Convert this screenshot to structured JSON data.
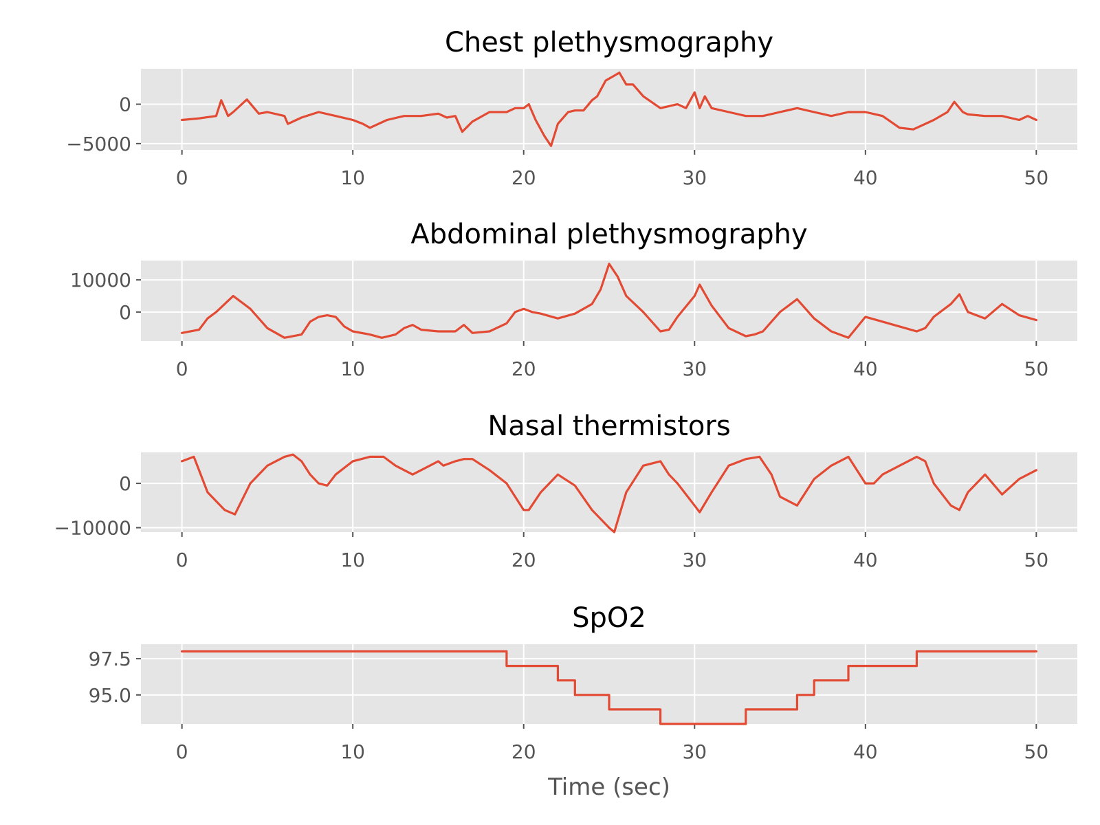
{
  "figure": {
    "xlabel": "Time (sec)"
  },
  "chart_data": [
    {
      "type": "line",
      "title": "Chest plethysmography",
      "xlim": [
        -2.4,
        52.4
      ],
      "ylim": [
        -5800,
        4500
      ],
      "xticks": [
        0,
        10,
        20,
        30,
        40,
        50
      ],
      "xtick_labels": [
        "0",
        "10",
        "20",
        "30",
        "40",
        "50"
      ],
      "yticks": [
        0,
        -5000
      ],
      "ytick_labels": [
        "0",
        "−5000"
      ],
      "grid": true,
      "color": "#e24a33",
      "series": [
        {
          "x": [
            0,
            1,
            2,
            2.3,
            2.7,
            3,
            3.8,
            4.5,
            5,
            6,
            6.2,
            7,
            8,
            9,
            10,
            10.6,
            11,
            12,
            13,
            14,
            15,
            15.5,
            16,
            16.4,
            17,
            18,
            19,
            19.5,
            20,
            20.3,
            20.7,
            21.2,
            21.6,
            22,
            22.6,
            23,
            23.5,
            24,
            24.3,
            24.8,
            25.2,
            25.6,
            26,
            26.4,
            27,
            28,
            29,
            29.5,
            30,
            30.3,
            30.6,
            31,
            32,
            33,
            34,
            35,
            36,
            37,
            38,
            39,
            40,
            41,
            42,
            42.8,
            43,
            44,
            44.8,
            45.2,
            45.7,
            46,
            47,
            48,
            49,
            49.5,
            50
          ],
          "y": [
            -2000,
            -1800,
            -1500,
            500,
            -1500,
            -1000,
            600,
            -1200,
            -1000,
            -1500,
            -2500,
            -1700,
            -1000,
            -1500,
            -2000,
            -2500,
            -3000,
            -2000,
            -1500,
            -1500,
            -1200,
            -1700,
            -1500,
            -3500,
            -2200,
            -1000,
            -1000,
            -500,
            -500,
            0,
            -2000,
            -4000,
            -5300,
            -2500,
            -1000,
            -800,
            -800,
            500,
            1000,
            3000,
            3500,
            4000,
            2500,
            2500,
            1000,
            -500,
            0,
            -500,
            1500,
            -500,
            1000,
            -500,
            -1000,
            -1500,
            -1500,
            -1000,
            -500,
            -1000,
            -1500,
            -1000,
            -1000,
            -1500,
            -3000,
            -3200,
            -3000,
            -2000,
            -1000,
            300,
            -1000,
            -1300,
            -1500,
            -1500,
            -2000,
            -1500,
            -2000
          ]
        }
      ]
    },
    {
      "type": "line",
      "title": "Abdominal plethysmography",
      "xlim": [
        -2.4,
        52.4
      ],
      "ylim": [
        -9000,
        16000
      ],
      "xticks": [
        0,
        10,
        20,
        30,
        40,
        50
      ],
      "xtick_labels": [
        "0",
        "10",
        "20",
        "30",
        "40",
        "50"
      ],
      "yticks": [
        10000,
        0
      ],
      "ytick_labels": [
        "10000",
        "0"
      ],
      "grid": true,
      "color": "#e24a33",
      "series": [
        {
          "x": [
            0,
            1,
            1.5,
            2,
            3,
            4,
            5,
            6,
            7,
            7.5,
            8,
            8.5,
            9,
            9.5,
            10,
            11,
            11.7,
            12.5,
            13,
            13.5,
            14,
            15,
            16,
            16.5,
            17,
            18,
            19,
            19.5,
            20,
            20.5,
            21,
            22,
            23,
            24,
            24.5,
            25,
            25.5,
            26,
            27,
            28,
            28.5,
            29,
            30,
            30.3,
            31,
            32,
            33,
            33.5,
            34,
            35,
            36,
            37,
            38,
            39,
            40,
            41,
            42,
            43,
            43.5,
            44,
            45,
            45.5,
            46,
            47,
            48,
            49,
            50
          ],
          "y": [
            -6500,
            -5500,
            -2000,
            0,
            5000,
            1000,
            -5000,
            -8000,
            -7000,
            -3000,
            -1500,
            -1000,
            -1500,
            -4500,
            -6000,
            -7000,
            -8000,
            -7000,
            -5000,
            -4000,
            -5500,
            -6000,
            -6000,
            -4000,
            -6500,
            -6000,
            -3500,
            0,
            1000,
            0,
            -500,
            -2000,
            -500,
            2500,
            7000,
            15000,
            11000,
            5000,
            0,
            -6000,
            -5500,
            -1500,
            5000,
            8500,
            2000,
            -5000,
            -7500,
            -7000,
            -6000,
            0,
            4000,
            -2000,
            -6000,
            -8000,
            -1500,
            -3000,
            -4500,
            -6000,
            -5000,
            -1500,
            2500,
            5500,
            0,
            -2000,
            2500,
            -1000,
            -2500
          ]
        }
      ]
    },
    {
      "type": "line",
      "title": "Nasal thermistors",
      "xlim": [
        -2.4,
        52.4
      ],
      "ylim": [
        -11000,
        7000
      ],
      "xticks": [
        0,
        10,
        20,
        30,
        40,
        50
      ],
      "xtick_labels": [
        "0",
        "10",
        "20",
        "30",
        "40",
        "50"
      ],
      "yticks": [
        0,
        -10000
      ],
      "ytick_labels": [
        "0",
        "−10000"
      ],
      "grid": true,
      "color": "#e24a33",
      "series": [
        {
          "x": [
            0,
            0.7,
            1.5,
            2.5,
            3.1,
            4,
            5,
            6,
            6.5,
            7,
            7.5,
            8,
            8.5,
            9,
            10,
            11,
            11.8,
            12.5,
            13,
            13.5,
            14,
            15,
            15.3,
            16,
            16.5,
            17,
            18,
            19,
            20,
            20.3,
            21,
            22,
            23,
            24,
            25,
            25.3,
            26,
            27,
            28,
            28.5,
            29,
            30,
            30.3,
            31,
            32,
            33,
            33.8,
            34.5,
            35,
            36,
            37,
            38,
            39,
            40,
            40.5,
            41,
            42,
            43,
            43.5,
            44,
            45,
            45.5,
            46,
            47,
            48,
            49,
            50
          ],
          "y": [
            5000,
            6000,
            -2000,
            -6000,
            -7000,
            0,
            4000,
            6000,
            6500,
            5000,
            2000,
            0,
            -500,
            2000,
            5000,
            6000,
            6000,
            4000,
            3000,
            2000,
            3000,
            5000,
            4000,
            5000,
            5500,
            5500,
            3000,
            0,
            -6000,
            -6000,
            -2000,
            2000,
            -500,
            -6000,
            -10000,
            -11000,
            -2000,
            4000,
            5000,
            2000,
            0,
            -5000,
            -6500,
            -2000,
            4000,
            5500,
            6000,
            2000,
            -3000,
            -5000,
            1000,
            4000,
            6000,
            0,
            0,
            2000,
            4000,
            6000,
            5000,
            0,
            -5000,
            -6000,
            -2000,
            2000,
            -2500,
            1000,
            3000
          ]
        }
      ]
    },
    {
      "type": "line",
      "title": "SpO2",
      "xlim": [
        -2.4,
        52.4
      ],
      "ylim": [
        93,
        98.5
      ],
      "xticks": [
        0,
        10,
        20,
        30,
        40,
        50
      ],
      "xtick_labels": [
        "0",
        "10",
        "20",
        "30",
        "40",
        "50"
      ],
      "yticks": [
        97.5,
        95.0
      ],
      "ytick_labels": [
        "97.5",
        "95.0"
      ],
      "grid": true,
      "color": "#e24a33",
      "series": [
        {
          "x": [
            0,
            19,
            19,
            22,
            22,
            23,
            23,
            25,
            25,
            28,
            28,
            33,
            33,
            36,
            36,
            37,
            37,
            39,
            39,
            43,
            43,
            50
          ],
          "y": [
            98,
            98,
            97,
            97,
            96,
            96,
            95,
            95,
            94,
            94,
            93,
            93,
            94,
            94,
            95,
            95,
            96,
            96,
            97,
            97,
            98,
            98
          ]
        }
      ]
    }
  ]
}
